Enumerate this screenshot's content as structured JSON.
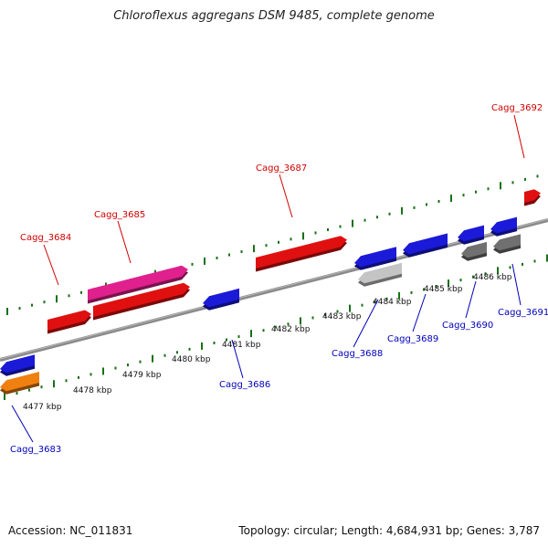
{
  "title": "Chloroflexus aggregans DSM 9485, complete genome",
  "footer": {
    "accession": "Accession: NC_011831",
    "summary": "Topology: circular; Length: 4,684,931 bp; Genes: 3,787"
  },
  "colors": {
    "red": "#e01010",
    "magenta": "#e0208c",
    "blue": "#1a1ad8",
    "orange": "#f08010",
    "lightgray": "#c4c4c4",
    "darkgray": "#707070",
    "label_forward": "#d00000",
    "label_reverse": "#0000b8",
    "tick": "#187018",
    "axis": "#8a8a8a"
  },
  "scale_labels": [
    "4477 kbp",
    "4478 kbp",
    "4479 kbp",
    "4480 kbp",
    "4481 kbp",
    "4482 kbp",
    "4483 kbp",
    "4484 kbp",
    "4485 kbp",
    "4486 kbp"
  ],
  "gene_labels": [
    {
      "text": "Cagg_3684",
      "strand": "forward"
    },
    {
      "text": "Cagg_3685",
      "strand": "forward"
    },
    {
      "text": "Cagg_3687",
      "strand": "forward"
    },
    {
      "text": "Cagg_3692",
      "strand": "forward"
    },
    {
      "text": "Cagg_3683",
      "strand": "reverse"
    },
    {
      "text": "Cagg_3686",
      "strand": "reverse"
    },
    {
      "text": "Cagg_3688",
      "strand": "reverse"
    },
    {
      "text": "Cagg_3689",
      "strand": "reverse"
    },
    {
      "text": "Cagg_3690",
      "strand": "reverse"
    },
    {
      "text": "Cagg_3691",
      "strand": "reverse"
    }
  ]
}
